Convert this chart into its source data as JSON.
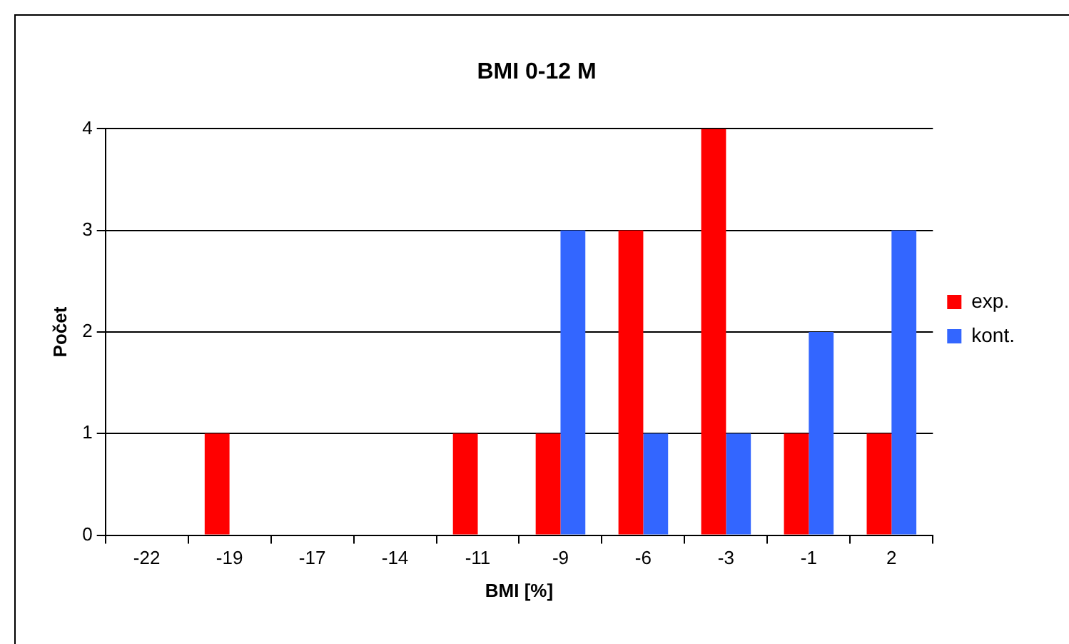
{
  "chart_data": {
    "type": "bar",
    "title": "BMI 0-12 M",
    "xlabel": "BMI [%]",
    "ylabel": "Počet",
    "categories": [
      "-22",
      "-19",
      "-17",
      "-14",
      "-11",
      "-9",
      "-6",
      "-3",
      "-1",
      "2"
    ],
    "series": [
      {
        "name": "exp.",
        "color": "#ff0000",
        "values": [
          0,
          1,
          0,
          0,
          1,
          1,
          3,
          4,
          1,
          1
        ]
      },
      {
        "name": "kont.",
        "color": "#3366ff",
        "values": [
          0,
          0,
          0,
          0,
          0,
          3,
          1,
          1,
          2,
          3
        ]
      }
    ],
    "ylim": [
      0,
      4
    ],
    "yticks": [
      0,
      1,
      2,
      3,
      4
    ],
    "grid": "y",
    "legend": "right"
  }
}
